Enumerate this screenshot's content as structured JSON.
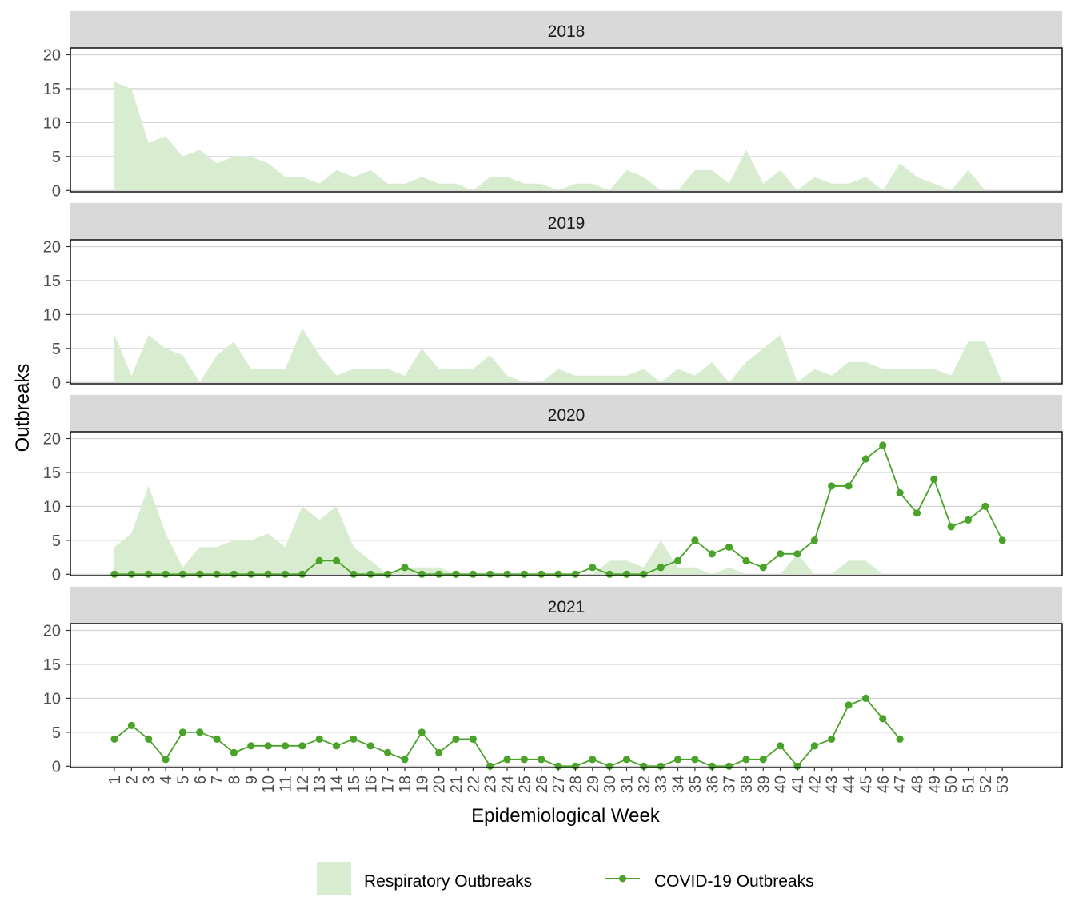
{
  "chart_data": {
    "type": "area",
    "xlabel": "Epidemiological Week",
    "ylabel": "Outbreaks",
    "xlim": [
      1,
      53
    ],
    "ylim": [
      0,
      21
    ],
    "y_ticks": [
      0,
      5,
      10,
      15,
      20
    ],
    "x_tick_labels": [
      "1",
      "2",
      "3",
      "4",
      "5",
      "6",
      "7",
      "8",
      "9",
      "10",
      "11",
      "12",
      "13",
      "14",
      "15",
      "16",
      "17",
      "18",
      "19",
      "20",
      "21",
      "22",
      "23",
      "24",
      "25",
      "26",
      "27",
      "28",
      "29",
      "30",
      "31",
      "32",
      "33",
      "34",
      "35",
      "36",
      "37",
      "38",
      "39",
      "40",
      "41",
      "42",
      "43",
      "44",
      "45",
      "46",
      "47",
      "48",
      "49",
      "50",
      "51",
      "52",
      "53"
    ],
    "grid": true,
    "legend_position": "bottom",
    "legend": [
      {
        "label": "Respiratory Outbreaks",
        "kind": "area"
      },
      {
        "label": "COVID-19 Outbreaks",
        "kind": "line"
      }
    ],
    "colors": {
      "respiratory": "#d8ecd0",
      "covid": "#4aa328",
      "strip": "#d9d9d9",
      "grid": "#d4d4d4"
    },
    "panels": [
      {
        "label": "2018",
        "respiratory": [
          16,
          15,
          7,
          8,
          5,
          6,
          4,
          5,
          5,
          4,
          2,
          2,
          1,
          3,
          2,
          3,
          1,
          1,
          2,
          1,
          1,
          0,
          2,
          2,
          1,
          1,
          0,
          1,
          1,
          0,
          3,
          2,
          0,
          0,
          3,
          3,
          1,
          6,
          1,
          3,
          0,
          2,
          1,
          1,
          2,
          0,
          4,
          2,
          1,
          0,
          3,
          0
        ],
        "covid": []
      },
      {
        "label": "2019",
        "respiratory": [
          7,
          1,
          7,
          5,
          4,
          0,
          4,
          6,
          2,
          2,
          2,
          8,
          4,
          1,
          2,
          2,
          2,
          1,
          5,
          2,
          2,
          2,
          4,
          1,
          0,
          0,
          2,
          1,
          1,
          1,
          1,
          2,
          0,
          2,
          1,
          3,
          0,
          3,
          5,
          7,
          0,
          2,
          1,
          3,
          3,
          2,
          2,
          2,
          2,
          1,
          6,
          6,
          0
        ],
        "covid": []
      },
      {
        "label": "2020",
        "respiratory": [
          4,
          6,
          13,
          6,
          1,
          4,
          4,
          5,
          5,
          6,
          4,
          10,
          8,
          10,
          4,
          2,
          0,
          1,
          1,
          1,
          0,
          0,
          0,
          0,
          0,
          0,
          0,
          0,
          0,
          2,
          2,
          1,
          5,
          1,
          1,
          0,
          1,
          0,
          0,
          0,
          3,
          0,
          0,
          2,
          2,
          0
        ],
        "covid": [
          0,
          0,
          0,
          0,
          0,
          0,
          0,
          0,
          0,
          0,
          0,
          0,
          2,
          2,
          0,
          0,
          0,
          1,
          0,
          0,
          0,
          0,
          0,
          0,
          0,
          0,
          0,
          0,
          1,
          0,
          0,
          0,
          1,
          2,
          5,
          3,
          4,
          2,
          1,
          3,
          3,
          5,
          13,
          13,
          17,
          19,
          12,
          9,
          14,
          7,
          8,
          10,
          5
        ]
      },
      {
        "label": "2021",
        "respiratory": [],
        "covid": [
          4,
          6,
          4,
          1,
          5,
          5,
          4,
          2,
          3,
          3,
          3,
          3,
          4,
          3,
          4,
          3,
          2,
          1,
          5,
          2,
          4,
          4,
          0,
          1,
          1,
          1,
          0,
          0,
          1,
          0,
          1,
          0,
          0,
          1,
          1,
          0,
          0,
          1,
          1,
          3,
          0,
          3,
          4,
          9,
          10,
          7,
          4
        ]
      }
    ]
  }
}
